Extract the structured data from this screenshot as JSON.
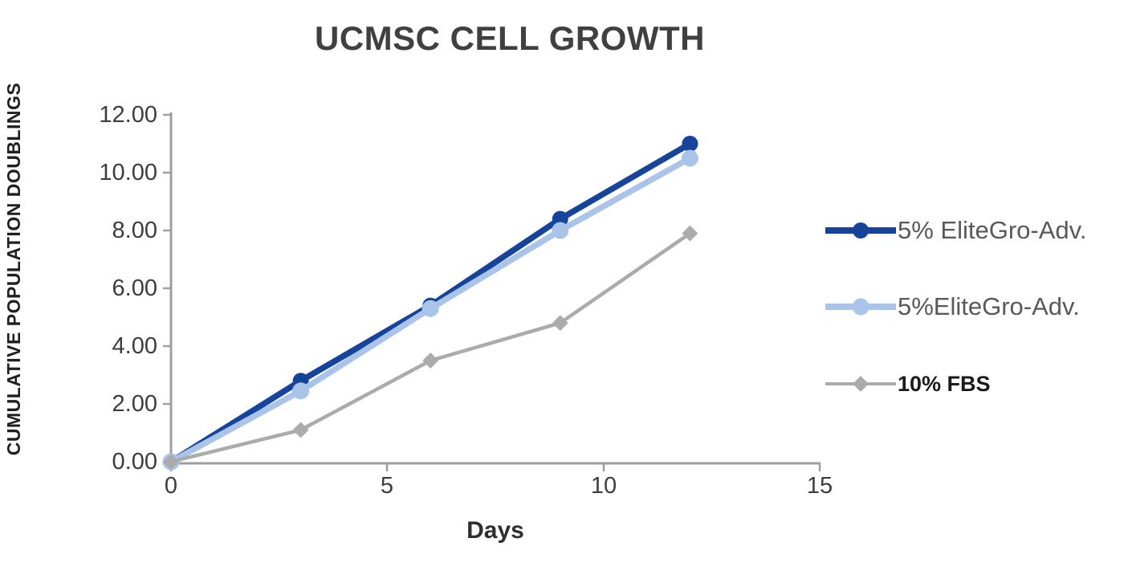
{
  "chart_data": {
    "type": "line",
    "title": "UCMSC CELL GROWTH",
    "xlabel": "Days",
    "ylabel": "CUMULATIVE POPULATION DOUBLINGS",
    "x": [
      0,
      3,
      6,
      9,
      12
    ],
    "xlim": [
      0,
      15
    ],
    "ylim": [
      0,
      12
    ],
    "x_tick_labels": [
      "0",
      "5",
      "10",
      "15"
    ],
    "y_tick_labels": [
      "0.00",
      "2.00",
      "4.00",
      "6.00",
      "8.00",
      "10.00",
      "12.00"
    ],
    "grid": false,
    "legend_position": "right",
    "axis_color": "#9e9e9e",
    "series": [
      {
        "name": "5% EliteGro-Adv.",
        "color": "#17449b",
        "marker": "circle",
        "values": [
          0.0,
          2.8,
          5.4,
          8.4,
          11.0
        ]
      },
      {
        "name": "5%EliteGro-Adv.",
        "color": "#a9c4e8",
        "marker": "circle",
        "values": [
          0.0,
          2.45,
          5.3,
          8.0,
          10.5
        ]
      },
      {
        "name": "10% FBS",
        "color": "#ababab",
        "marker": "diamond",
        "values": [
          0.0,
          1.1,
          3.5,
          4.8,
          7.9
        ]
      }
    ]
  }
}
